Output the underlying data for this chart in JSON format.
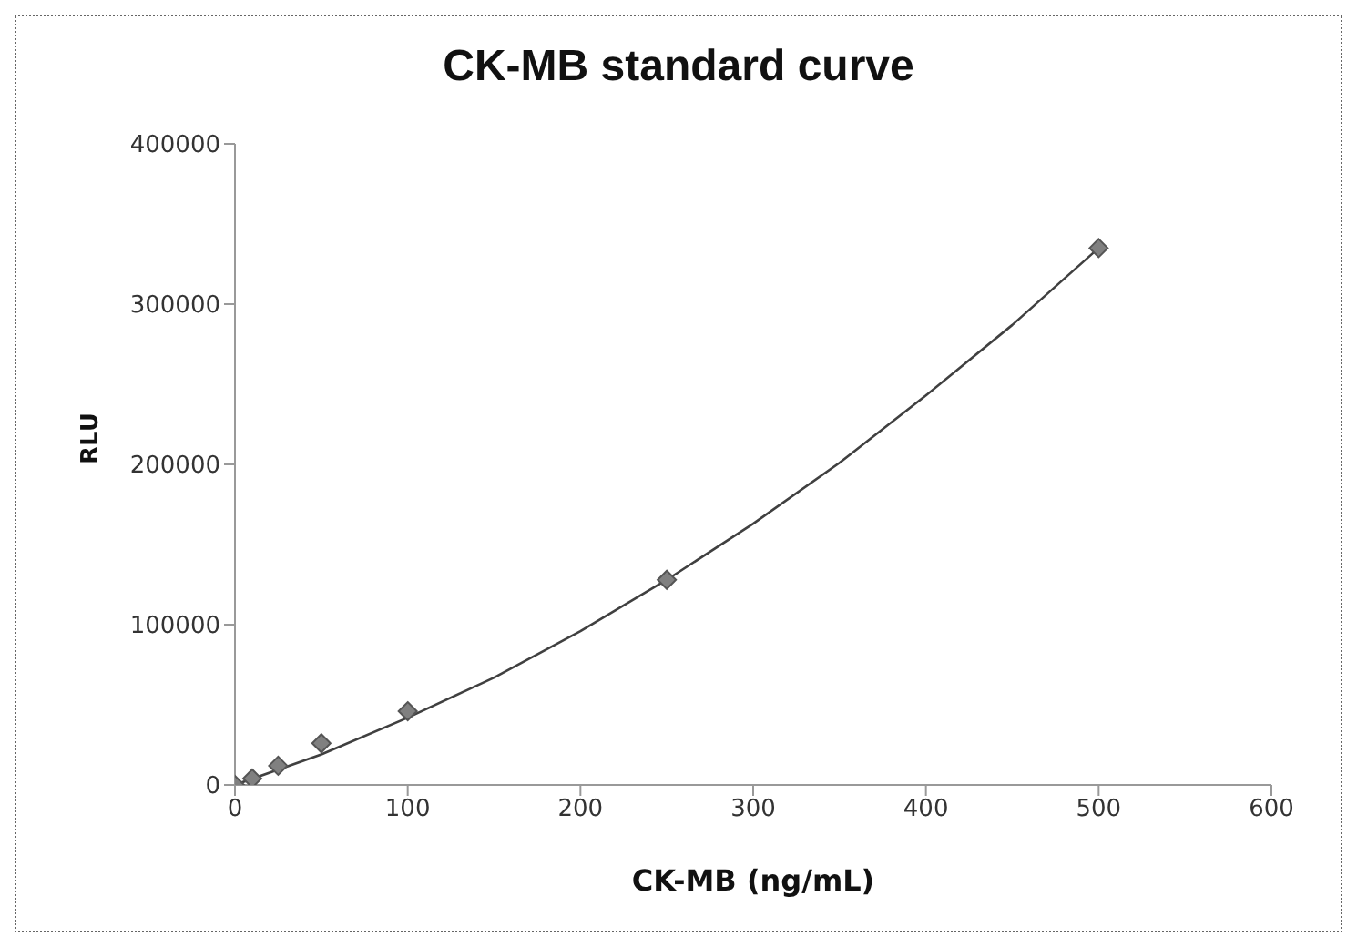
{
  "chart_data": {
    "type": "scatter",
    "title": "CK-MB standard curve",
    "xlabel": "CK-MB (ng/mL)",
    "ylabel": "RLU",
    "xlim": [
      0,
      600
    ],
    "xticks": [
      0,
      100,
      200,
      300,
      400,
      500,
      600
    ],
    "ylim": [
      0,
      400000
    ],
    "yticks": [
      0,
      100000,
      200000,
      300000,
      400000
    ],
    "grid": false,
    "legend": false,
    "marker": "diamond",
    "series": [
      {
        "color": "#808080",
        "x": [
          0,
          10,
          25,
          50,
          100,
          250,
          500
        ],
        "values": [
          0,
          4000,
          12000,
          26000,
          46000,
          128000,
          335000
        ]
      },
      {
        "type": "line",
        "color": "#404040",
        "marker": "none",
        "line_style": "solid",
        "x": [
          0,
          50,
          100,
          150,
          200,
          250,
          300,
          350,
          400,
          450,
          500
        ],
        "values": [
          0,
          19000,
          42000,
          67000,
          96000,
          128000,
          163000,
          201000,
          243000,
          287000,
          335000
        ]
      }
    ]
  }
}
